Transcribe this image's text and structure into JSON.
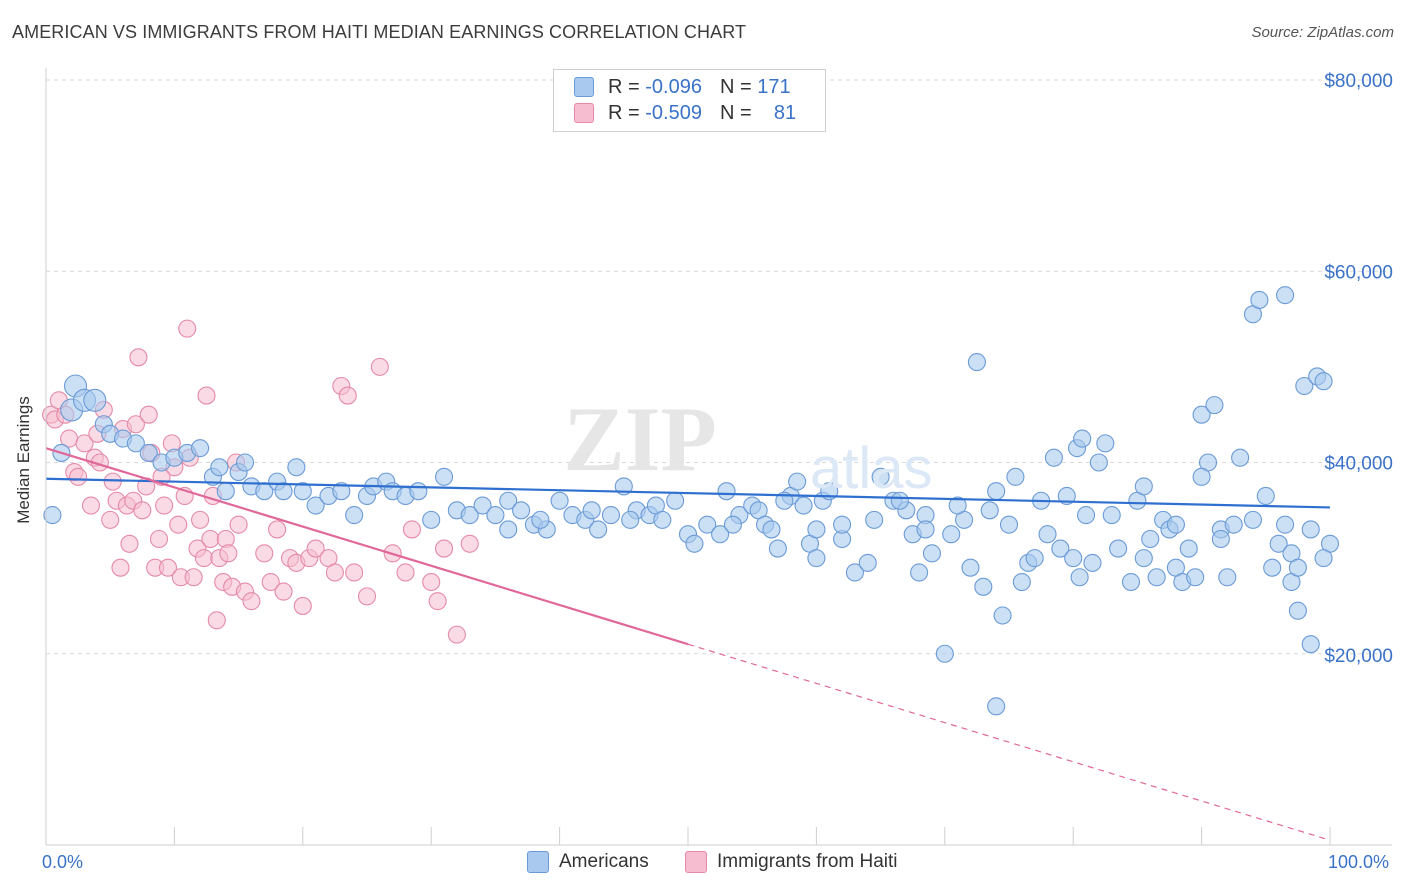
{
  "title": "AMERICAN VS IMMIGRANTS FROM HAITI MEDIAN EARNINGS CORRELATION CHART",
  "source": "Source: ZipAtlas.com",
  "watermark": "ZIPatlas",
  "legend": {
    "rows": [
      {
        "r_label": "R =",
        "r_value": "-0.096",
        "n_label": "N =",
        "n_value": "171"
      },
      {
        "r_label": "R =",
        "r_value": "-0.509",
        "n_label": "N =",
        "n_value": "81"
      }
    ]
  },
  "bottom_legend": [
    "Americans",
    "Immigrants from Haiti"
  ],
  "colors": {
    "blue_fill": "#a9c9ef",
    "blue_stroke": "#6b9bd6",
    "blue_line": "#2f6fcf",
    "pink_fill": "#f6bdd0",
    "pink_stroke": "#e58aa9",
    "pink_line": "#e0689a",
    "axis_label": "#3a72c8",
    "grid": "#d9d9d9"
  },
  "chart_data": {
    "type": "scatter",
    "title": "AMERICAN VS IMMIGRANTS FROM HAITI MEDIAN EARNINGS CORRELATION CHART",
    "xlabel": "",
    "ylabel": "Median Earnings",
    "x_tick_labels": [
      "0.0%",
      "100.0%"
    ],
    "y_tick_labels": [
      "$20,000",
      "$40,000",
      "$60,000",
      "$80,000"
    ],
    "y_ticks": [
      20000,
      40000,
      60000,
      80000
    ],
    "xlim": [
      0,
      100
    ],
    "ylim": [
      0,
      82000
    ],
    "grid": true,
    "legend_position": "top-center",
    "series": [
      {
        "name": "Americans",
        "r": -0.096,
        "n": 171,
        "trend": {
          "x": [
            0,
            100
          ],
          "y": [
            38300,
            35300
          ],
          "style": "solid"
        },
        "points": [
          [
            0.5,
            34500
          ],
          [
            1.2,
            41000
          ],
          [
            2.0,
            45500
          ],
          [
            2.3,
            48000
          ],
          [
            3.0,
            46500
          ],
          [
            3.8,
            46500
          ],
          [
            4.5,
            44000
          ],
          [
            5.0,
            43000
          ],
          [
            6.0,
            42500
          ],
          [
            7.0,
            42000
          ],
          [
            8.0,
            41000
          ],
          [
            9.0,
            40000
          ],
          [
            10.0,
            40500
          ],
          [
            11.0,
            41000
          ],
          [
            12.0,
            41500
          ],
          [
            13.0,
            38500
          ],
          [
            13.5,
            39500
          ],
          [
            14.0,
            37000
          ],
          [
            15.0,
            39000
          ],
          [
            15.5,
            40000
          ],
          [
            16.0,
            37500
          ],
          [
            17.0,
            37000
          ],
          [
            18.0,
            38000
          ],
          [
            18.5,
            37000
          ],
          [
            19.5,
            39500
          ],
          [
            20.0,
            37000
          ],
          [
            21.0,
            35500
          ],
          [
            22.0,
            36500
          ],
          [
            23.0,
            37000
          ],
          [
            24.0,
            34500
          ],
          [
            25.0,
            36500
          ],
          [
            25.5,
            37500
          ],
          [
            26.5,
            38000
          ],
          [
            27.0,
            37000
          ],
          [
            28.0,
            36500
          ],
          [
            29.0,
            37000
          ],
          [
            30.0,
            34000
          ],
          [
            31.0,
            38500
          ],
          [
            32.0,
            35000
          ],
          [
            33.0,
            34500
          ],
          [
            34.0,
            35500
          ],
          [
            35.0,
            34500
          ],
          [
            36.0,
            36000
          ],
          [
            37.0,
            35000
          ],
          [
            38.0,
            33500
          ],
          [
            39.0,
            33000
          ],
          [
            40.0,
            36000
          ],
          [
            41.0,
            34500
          ],
          [
            42.0,
            34000
          ],
          [
            42.5,
            35000
          ],
          [
            43.0,
            33000
          ],
          [
            44.0,
            34500
          ],
          [
            45.0,
            37500
          ],
          [
            46.0,
            35000
          ],
          [
            47.0,
            34500
          ],
          [
            47.5,
            35500
          ],
          [
            48.0,
            34000
          ],
          [
            49.0,
            36000
          ],
          [
            50.0,
            32500
          ],
          [
            50.5,
            31500
          ],
          [
            51.5,
            33500
          ],
          [
            52.5,
            32500
          ],
          [
            53.0,
            37000
          ],
          [
            54.0,
            34500
          ],
          [
            55.0,
            35500
          ],
          [
            55.5,
            35000
          ],
          [
            56.0,
            33500
          ],
          [
            56.5,
            33000
          ],
          [
            57.0,
            31000
          ],
          [
            58.0,
            36500
          ],
          [
            58.5,
            38000
          ],
          [
            59.0,
            35500
          ],
          [
            59.5,
            31500
          ],
          [
            60.0,
            30000
          ],
          [
            60.5,
            36000
          ],
          [
            61.0,
            37000
          ],
          [
            62.0,
            32000
          ],
          [
            63.0,
            28500
          ],
          [
            64.0,
            29500
          ],
          [
            64.5,
            34000
          ],
          [
            65.0,
            38500
          ],
          [
            66.0,
            36000
          ],
          [
            67.0,
            35000
          ],
          [
            67.5,
            32500
          ],
          [
            68.0,
            28500
          ],
          [
            68.5,
            34500
          ],
          [
            69.0,
            30500
          ],
          [
            70.0,
            20000
          ],
          [
            70.5,
            32500
          ],
          [
            71.5,
            34000
          ],
          [
            72.0,
            29000
          ],
          [
            73.0,
            27000
          ],
          [
            73.5,
            35000
          ],
          [
            74.0,
            14500
          ],
          [
            74.5,
            24000
          ],
          [
            75.0,
            33500
          ],
          [
            76.0,
            27500
          ],
          [
            76.5,
            29500
          ],
          [
            77.0,
            30000
          ],
          [
            77.5,
            36000
          ],
          [
            78.0,
            32500
          ],
          [
            79.0,
            31000
          ],
          [
            79.5,
            36500
          ],
          [
            80.0,
            30000
          ],
          [
            80.5,
            28000
          ],
          [
            81.0,
            34500
          ],
          [
            81.5,
            29500
          ],
          [
            82.0,
            40000
          ],
          [
            82.5,
            42000
          ],
          [
            83.0,
            34500
          ],
          [
            83.5,
            31000
          ],
          [
            84.5,
            27500
          ],
          [
            85.0,
            36000
          ],
          [
            85.5,
            30000
          ],
          [
            86.0,
            32000
          ],
          [
            86.5,
            28000
          ],
          [
            87.0,
            34000
          ],
          [
            87.5,
            33000
          ],
          [
            88.0,
            29000
          ],
          [
            88.5,
            27500
          ],
          [
            89.0,
            31000
          ],
          [
            89.5,
            28000
          ],
          [
            90.0,
            45000
          ],
          [
            90.5,
            40000
          ],
          [
            91.0,
            46000
          ],
          [
            91.5,
            33000
          ],
          [
            92.0,
            28000
          ],
          [
            92.5,
            33500
          ],
          [
            93.0,
            40500
          ],
          [
            94.0,
            55500
          ],
          [
            94.5,
            57000
          ],
          [
            95.0,
            36500
          ],
          [
            95.5,
            29000
          ],
          [
            96.0,
            31500
          ],
          [
            96.5,
            57500
          ],
          [
            97.0,
            30500
          ],
          [
            97.5,
            24500
          ],
          [
            98.0,
            48000
          ],
          [
            98.5,
            21000
          ],
          [
            99.0,
            49000
          ],
          [
            99.5,
            48500
          ],
          [
            100.0,
            31500
          ],
          [
            72.5,
            50500
          ],
          [
            80.3,
            41500
          ],
          [
            80.7,
            42500
          ],
          [
            78.5,
            40500
          ],
          [
            85.5,
            37500
          ],
          [
            88.0,
            33500
          ],
          [
            90.0,
            38500
          ],
          [
            91.5,
            32000
          ],
          [
            94.0,
            34000
          ],
          [
            96.5,
            33500
          ],
          [
            97.0,
            27500
          ],
          [
            97.5,
            29000
          ],
          [
            98.5,
            33000
          ],
          [
            99.5,
            30000
          ],
          [
            75.5,
            38500
          ],
          [
            74.0,
            37000
          ],
          [
            71.0,
            35500
          ],
          [
            68.5,
            33000
          ],
          [
            66.5,
            36000
          ],
          [
            62.0,
            33500
          ],
          [
            60.0,
            33000
          ],
          [
            57.5,
            36000
          ],
          [
            53.5,
            33500
          ],
          [
            45.5,
            34000
          ],
          [
            38.5,
            34000
          ],
          [
            36.0,
            33000
          ]
        ]
      },
      {
        "name": "Immigrants from Haiti",
        "r": -0.509,
        "n": 81,
        "trend": {
          "x": [
            0,
            50,
            100
          ],
          "y": [
            41500,
            21000,
            500
          ],
          "style": "solid-then-dashed"
        },
        "points": [
          [
            0.4,
            45000
          ],
          [
            0.7,
            44500
          ],
          [
            1.0,
            46500
          ],
          [
            1.5,
            45000
          ],
          [
            1.8,
            42500
          ],
          [
            2.2,
            39000
          ],
          [
            2.5,
            38500
          ],
          [
            3.0,
            42000
          ],
          [
            3.5,
            35500
          ],
          [
            3.8,
            40500
          ],
          [
            4.0,
            43000
          ],
          [
            4.2,
            40000
          ],
          [
            4.5,
            45500
          ],
          [
            5.0,
            34000
          ],
          [
            5.2,
            38000
          ],
          [
            5.5,
            36000
          ],
          [
            5.8,
            29000
          ],
          [
            6.0,
            43500
          ],
          [
            6.3,
            35500
          ],
          [
            6.5,
            31500
          ],
          [
            6.8,
            36000
          ],
          [
            7.0,
            44000
          ],
          [
            7.2,
            51000
          ],
          [
            7.5,
            35000
          ],
          [
            7.8,
            37500
          ],
          [
            8.0,
            45000
          ],
          [
            8.2,
            41000
          ],
          [
            8.5,
            29000
          ],
          [
            8.8,
            32000
          ],
          [
            9.0,
            38500
          ],
          [
            9.2,
            35500
          ],
          [
            9.5,
            29000
          ],
          [
            9.8,
            42000
          ],
          [
            10.0,
            39500
          ],
          [
            10.3,
            33500
          ],
          [
            10.5,
            28000
          ],
          [
            10.8,
            36500
          ],
          [
            11.0,
            54000
          ],
          [
            11.2,
            40500
          ],
          [
            11.5,
            28000
          ],
          [
            11.8,
            31000
          ],
          [
            12.0,
            34000
          ],
          [
            12.3,
            30000
          ],
          [
            12.5,
            47000
          ],
          [
            12.8,
            32000
          ],
          [
            13.0,
            36500
          ],
          [
            13.3,
            23500
          ],
          [
            13.5,
            30000
          ],
          [
            13.8,
            27500
          ],
          [
            14.0,
            32000
          ],
          [
            14.2,
            30500
          ],
          [
            14.5,
            27000
          ],
          [
            14.8,
            40000
          ],
          [
            15.0,
            33500
          ],
          [
            15.5,
            26500
          ],
          [
            16.0,
            25500
          ],
          [
            17.0,
            30500
          ],
          [
            17.5,
            27500
          ],
          [
            18.0,
            33000
          ],
          [
            18.5,
            26500
          ],
          [
            19.0,
            30000
          ],
          [
            19.5,
            29500
          ],
          [
            20.0,
            25000
          ],
          [
            20.5,
            30000
          ],
          [
            21.0,
            31000
          ],
          [
            22.0,
            30000
          ],
          [
            22.5,
            28500
          ],
          [
            23.0,
            48000
          ],
          [
            23.5,
            47000
          ],
          [
            24.0,
            28500
          ],
          [
            25.0,
            26000
          ],
          [
            26.0,
            50000
          ],
          [
            27.0,
            30500
          ],
          [
            28.0,
            28500
          ],
          [
            28.5,
            33000
          ],
          [
            30.0,
            27500
          ],
          [
            30.5,
            25500
          ],
          [
            31.0,
            31000
          ],
          [
            32.0,
            22000
          ],
          [
            33.0,
            31500
          ]
        ]
      }
    ]
  }
}
